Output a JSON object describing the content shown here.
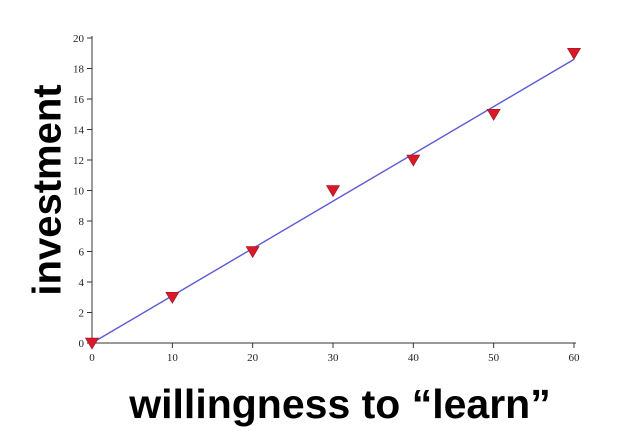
{
  "chart_data": {
    "type": "scatter",
    "title": "",
    "xlabel": "willingness to “learn”",
    "ylabel": "investment",
    "xlim": [
      0,
      60
    ],
    "ylim": [
      0,
      20
    ],
    "x_ticks": [
      "0",
      "10",
      "20",
      "30",
      "40",
      "50",
      "60"
    ],
    "y_ticks": [
      "0",
      "2",
      "4",
      "6",
      "8",
      "10",
      "12",
      "14",
      "16",
      "18",
      "20"
    ],
    "grid": false,
    "legend": "none",
    "series": [
      {
        "marker": "triangle-down",
        "color": "#d8192a",
        "x": [
          0,
          10,
          20,
          30,
          40,
          50,
          60
        ],
        "y": [
          0,
          3,
          6,
          10,
          12,
          15,
          19
        ]
      }
    ],
    "fit_line": {
      "color": "#5a5ad6",
      "x": [
        0,
        60
      ],
      "y": [
        0,
        18.6
      ]
    }
  }
}
